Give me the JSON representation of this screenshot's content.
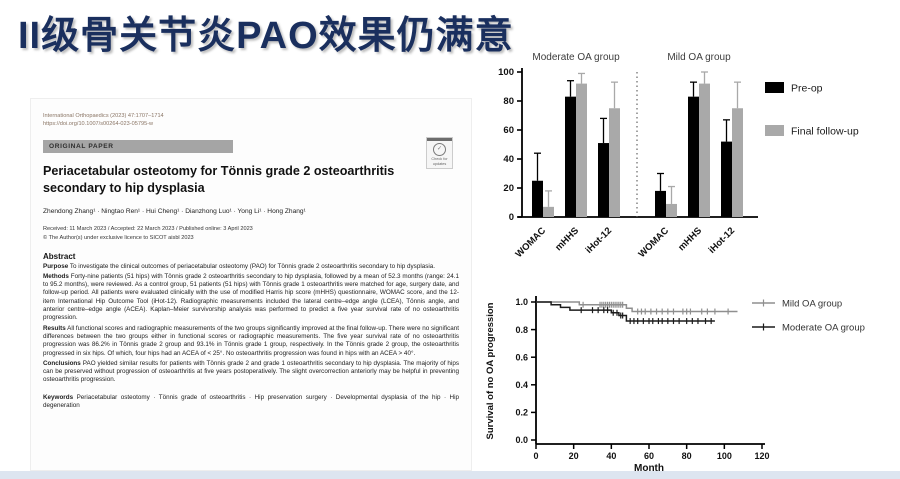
{
  "slide": {
    "title": "II级骨关节炎PAO效果仍满意",
    "title_color": "#1a2f5e"
  },
  "paper": {
    "journal_line": "International Orthopaedics (2023) 47:1707–1714",
    "doi_line": "https://doi.org/10.1007/s00264-023-05795-w",
    "section_badge": "ORIGINAL PAPER",
    "check_updates_label": "Check for updates",
    "title": "Periacetabular osteotomy for Tönnis grade 2 osteoarthritis secondary to hip dysplasia",
    "authors": "Zhendong Zhang¹ · Ningtao Ren¹ · Hui Cheng¹ · Dianzhong Luo¹ · Yong Li¹ · Hong Zhang¹",
    "received_line": "Received: 11 March 2023 / Accepted: 22 March 2023 / Published online: 3 April 2023",
    "license_line": "© The Author(s) under exclusive licence to SICOT aisbl 2023",
    "abstract_heading": "Abstract",
    "sections": [
      {
        "label": "Purpose",
        "text": "To investigate the clinical outcomes of periacetabular osteotomy (PAO) for Tönnis grade 2 osteoarthritis secondary to hip dysplasia."
      },
      {
        "label": "Methods",
        "text": "Forty-nine patients (51 hips) with Tönnis grade 2 osteoarthritis secondary to hip dysplasia, followed by a mean of 52.3 months (range: 24.1 to 95.2 months), were reviewed. As a control group, 51 patients (51 hips) with Tönnis grade 1 osteoarthritis were matched for age, surgery date, and follow-up period. All patients were evaluated clinically with the use of modified Harris hip score (mHHS) questionnaire, WOMAC score, and the 12-item International Hip Outcome Tool (iHot-12). Radiographic measurements included the lateral centre–edge angle (LCEA), Tönnis angle, and anterior centre–edge angle (ACEA). Kaplan–Meier survivorship analysis was performed to predict a five year survival rate of no osteoarthritis progression."
      },
      {
        "label": "Results",
        "text": "All functional scores and radiographic measurements of the two groups significantly improved at the final follow-up. There were no significant differences between the two groups either in functional scores or radiographic measurements. The five year survival rate of no osteoarthritis progression was 86.2% in Tönnis grade 2 group and 93.1% in Tönnis grade 1 group, respectively. In the Tönnis grade 2 group, the osteoarthritis progressed in six hips. Of which, four hips had an ACEA of < 25°. No osteoarthritis progression was found in hips with an ACEA > 40°."
      },
      {
        "label": "Conclusions",
        "text": "PAO yielded similar results for patients with Tönnis grade 2 and grade 1 osteoarthritis secondary to hip dysplasia. The majority of hips can be preserved without progression of osteoarthritis at five years postoperatively. The slight overcorrection anteriorly may be helpful in preventing osteoarthritis progression."
      }
    ],
    "keywords_label": "Keywords",
    "keywords_text": "Periacetabular osteotomy · Tönnis grade of osteoarthritis · Hip preservation surgery · Developmental dysplasia of the hip · Hip degeneration"
  },
  "chart_data": [
    {
      "type": "bar",
      "title": "",
      "group_labels": [
        "Moderate OA group",
        "Mild OA group"
      ],
      "categories": [
        "WOMAC",
        "mHHS",
        "iHot-12",
        "WOMAC",
        "mHHS",
        "iHot-12"
      ],
      "series": [
        {
          "name": "Pre-op",
          "color": "#000000",
          "values": [
            25,
            83,
            51,
            18,
            83,
            52
          ],
          "errors_up": [
            19,
            11,
            17,
            12,
            10,
            15
          ]
        },
        {
          "name": "Final follow-up",
          "color": "#a9a9a9",
          "values": [
            7,
            92,
            75,
            9,
            92,
            75
          ],
          "errors_up": [
            11,
            7,
            18,
            12,
            8,
            18
          ]
        }
      ],
      "ylim": [
        0,
        100
      ],
      "ytick_labels": [
        "0",
        "20",
        "40",
        "60",
        "80",
        "100"
      ],
      "divider_after_category": 2,
      "legend_position": "right",
      "xlabel": "",
      "ylabel": ""
    },
    {
      "type": "line",
      "subtype": "kaplan-meier",
      "title": "",
      "xlabel": "Month",
      "ylabel": "Survival of no OA progression",
      "xlim": [
        0,
        120
      ],
      "ylim": [
        0.0,
        1.0
      ],
      "xtick_labels": [
        "0",
        "20",
        "40",
        "60",
        "80",
        "100",
        "120"
      ],
      "ytick_labels": [
        "0.0",
        "0.2",
        "0.4",
        "0.6",
        "0.8",
        "1.0"
      ],
      "legend_position": "right",
      "series": [
        {
          "name": "Mild OA group",
          "color": "#8f8f8f",
          "steps": [
            [
              0,
              1.0
            ],
            [
              23,
              1.0
            ],
            [
              23,
              0.98
            ],
            [
              48,
              0.98
            ],
            [
              48,
              0.955
            ],
            [
              51,
              0.955
            ],
            [
              51,
              0.931
            ],
            [
              107,
              0.931
            ]
          ],
          "censors": [
            25,
            34,
            35,
            36,
            37,
            38,
            39,
            40,
            41,
            42,
            43,
            44,
            45,
            46,
            54,
            56,
            58,
            61,
            64,
            67,
            70,
            73,
            78,
            80,
            82,
            88,
            91,
            95,
            102
          ]
        },
        {
          "name": "Moderate OA group",
          "color": "#1c1c1c",
          "steps": [
            [
              0,
              1.0
            ],
            [
              8,
              1.0
            ],
            [
              8,
              0.98
            ],
            [
              13,
              0.98
            ],
            [
              13,
              0.961
            ],
            [
              18,
              0.961
            ],
            [
              18,
              0.941
            ],
            [
              40,
              0.941
            ],
            [
              40,
              0.922
            ],
            [
              44,
              0.922
            ],
            [
              44,
              0.902
            ],
            [
              48,
              0.902
            ],
            [
              48,
              0.862
            ],
            [
              95,
              0.862
            ]
          ],
          "censors": [
            24,
            30,
            33,
            36,
            38,
            41,
            43,
            45,
            46,
            50,
            52,
            54,
            57,
            60,
            62,
            65,
            67,
            70,
            73,
            76,
            80,
            83,
            86,
            90,
            93
          ]
        }
      ]
    }
  ]
}
